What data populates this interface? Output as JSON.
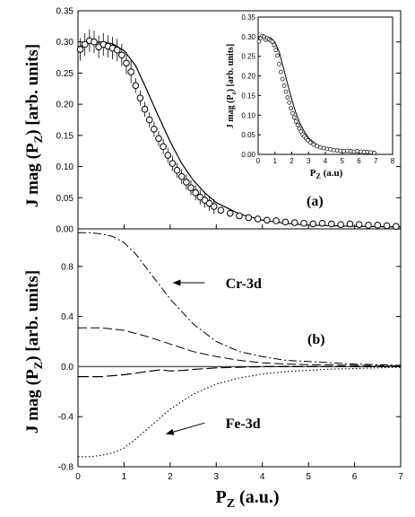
{
  "chart_data": [
    {
      "id": "a",
      "type": "scatter",
      "panel_label": "(a)",
      "ylabel_main": "J mag (P",
      "ylabel_sub": "Z",
      "ylabel_tail": ") [arb. units]",
      "xlim": [
        0,
        7
      ],
      "ylim": [
        0,
        0.35
      ],
      "yticks": [
        "0.00",
        "0.05",
        "0.10",
        "0.15",
        "0.20",
        "0.25",
        "0.30",
        "0.35"
      ],
      "ytick_values": [
        0,
        0.05,
        0.1,
        0.15,
        0.2,
        0.25,
        0.3,
        0.35
      ],
      "series": [
        {
          "kind": "points",
          "x": [
            0.05,
            0.15,
            0.25,
            0.35,
            0.45,
            0.55,
            0.65,
            0.75,
            0.85,
            0.95,
            1.05,
            1.15,
            1.25,
            1.35,
            1.45,
            1.55,
            1.65,
            1.75,
            1.85,
            1.95,
            2.05,
            2.15,
            2.25,
            2.35,
            2.45,
            2.55,
            2.65,
            2.75,
            2.85,
            2.95,
            3.1,
            3.3,
            3.5,
            3.7,
            3.9,
            4.1,
            4.3,
            4.5,
            4.7,
            4.9,
            5.1,
            5.3,
            5.5,
            5.7,
            5.9,
            6.1,
            6.3,
            6.5,
            6.7,
            6.9
          ],
          "y": [
            0.288,
            0.296,
            0.302,
            0.3,
            0.292,
            0.296,
            0.293,
            0.29,
            0.287,
            0.279,
            0.266,
            0.252,
            0.23,
            0.21,
            0.192,
            0.175,
            0.16,
            0.145,
            0.132,
            0.118,
            0.105,
            0.094,
            0.084,
            0.075,
            0.066,
            0.058,
            0.051,
            0.046,
            0.041,
            0.036,
            0.03,
            0.025,
            0.021,
            0.018,
            0.016,
            0.014,
            0.013,
            0.011,
            0.01,
            0.009,
            0.008,
            0.009,
            0.008,
            0.007,
            0.008,
            0.007,
            0.006,
            0.006,
            0.005,
            0.004
          ]
        },
        {
          "kind": "line",
          "x": [
            0,
            0.25,
            0.5,
            0.75,
            1.0,
            1.25,
            1.5,
            1.75,
            2.0,
            2.25,
            2.5,
            2.75,
            3.0,
            3.5,
            4.0,
            4.5,
            5.0,
            6.0,
            7.0
          ],
          "y": [
            0.292,
            0.298,
            0.3,
            0.297,
            0.286,
            0.262,
            0.222,
            0.18,
            0.14,
            0.105,
            0.078,
            0.058,
            0.042,
            0.024,
            0.014,
            0.009,
            0.006,
            0.004,
            0.003
          ]
        }
      ],
      "inset": {
        "xlabel_main": "P",
        "xlabel_sub": "Z",
        "xlabel_tail": " (a.u)",
        "ylabel_main": "J mag (P",
        "ylabel_sub": "z",
        "ylabel_tail": ") [arb. units]",
        "xlim": [
          0,
          8
        ],
        "ylim": [
          0,
          0.35
        ],
        "xticks": [
          "0",
          "1",
          "2",
          "3",
          "4",
          "5",
          "6",
          "7",
          "8"
        ],
        "xtick_values": [
          0,
          1,
          2,
          3,
          4,
          5,
          6,
          7,
          8
        ],
        "yticks": [
          "0.00",
          "0.05",
          "0.10",
          "0.15",
          "0.20",
          "0.25",
          "0.30",
          "0.35"
        ],
        "ytick_values": [
          0,
          0.05,
          0.1,
          0.15,
          0.2,
          0.25,
          0.3,
          0.35
        ]
      }
    },
    {
      "id": "b",
      "type": "line",
      "panel_label": "(b)",
      "xlabel_main": "P",
      "xlabel_sub": "Z",
      "xlabel_tail": " (a.u.)",
      "ylabel_main": "J mag (P",
      "ylabel_sub": "Z",
      "ylabel_tail": ") [arb. units]",
      "xlim": [
        0,
        7
      ],
      "ylim": [
        -0.8,
        1.1
      ],
      "xticks": [
        "0",
        "1",
        "2",
        "3",
        "4",
        "5",
        "6",
        "7"
      ],
      "xtick_values": [
        0,
        1,
        2,
        3,
        4,
        5,
        6,
        7
      ],
      "yticks": [
        "-0.8",
        "-0.4",
        "0.0",
        "0.4",
        "0.8"
      ],
      "ytick_values": [
        -0.8,
        -0.4,
        0.0,
        0.4,
        0.8
      ],
      "annotations": [
        {
          "text": "Cr-3d",
          "x": 3.2,
          "y": 0.67,
          "arrow_from": [
            2.75,
            0.67
          ],
          "arrow_to": [
            2.05,
            0.67
          ]
        },
        {
          "text": "Fe-3d",
          "x": 3.2,
          "y": -0.45,
          "arrow_from": [
            2.75,
            -0.45
          ],
          "arrow_to": [
            1.9,
            -0.54
          ]
        }
      ],
      "series": [
        {
          "name": "Cr-3d",
          "style": "dashdot",
          "x": [
            0,
            0.25,
            0.5,
            0.75,
            1.0,
            1.25,
            1.5,
            1.75,
            2.0,
            2.5,
            3.0,
            3.5,
            4.0,
            4.5,
            5.0,
            5.5,
            6.0,
            6.5,
            7.0
          ],
          "y": [
            1.07,
            1.07,
            1.06,
            1.04,
            0.99,
            0.9,
            0.78,
            0.66,
            0.54,
            0.34,
            0.2,
            0.12,
            0.08,
            0.05,
            0.04,
            0.03,
            0.02,
            0.015,
            0.01
          ]
        },
        {
          "style": "longdash",
          "x": [
            0,
            0.5,
            1.0,
            1.5,
            2.0,
            2.5,
            3.0,
            3.5,
            4.0,
            4.5,
            5.0,
            6.0,
            7.0
          ],
          "y": [
            0.31,
            0.31,
            0.29,
            0.24,
            0.18,
            0.12,
            0.08,
            0.05,
            0.03,
            0.02,
            0.015,
            0.01,
            0.005
          ]
        },
        {
          "style": "solid",
          "x": [
            0,
            7
          ],
          "y": [
            0,
            0
          ]
        },
        {
          "style": "longdash2",
          "x": [
            0,
            0.5,
            1.0,
            1.5,
            1.8,
            2.0,
            2.3,
            2.6,
            3.0,
            3.5,
            4.0,
            5.0,
            6.0,
            7.0
          ],
          "y": [
            -0.08,
            -0.08,
            -0.065,
            -0.04,
            -0.025,
            -0.035,
            -0.03,
            -0.02,
            -0.01,
            -0.005,
            0.0,
            0.0,
            0.0,
            0.0
          ]
        },
        {
          "name": "Fe-3d",
          "style": "dotted",
          "x": [
            0,
            0.25,
            0.5,
            0.75,
            1.0,
            1.25,
            1.5,
            1.75,
            2.0,
            2.5,
            3.0,
            3.5,
            4.0,
            4.5,
            5.0,
            5.5,
            6.0,
            6.5,
            7.0
          ],
          "y": [
            -0.72,
            -0.72,
            -0.71,
            -0.69,
            -0.65,
            -0.58,
            -0.5,
            -0.42,
            -0.34,
            -0.22,
            -0.14,
            -0.09,
            -0.06,
            -0.04,
            -0.03,
            -0.02,
            -0.015,
            -0.01,
            -0.005
          ]
        }
      ]
    }
  ]
}
